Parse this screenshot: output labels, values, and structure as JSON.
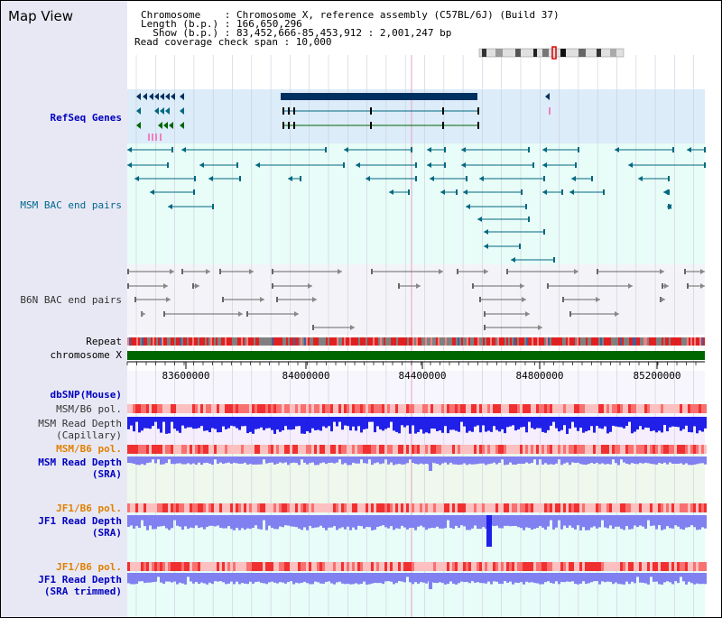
{
  "title": "Map View",
  "header": {
    "line1": "Chromosome    : Chromosome X, reference assembly (C57BL/6J) (Build 37)",
    "line2": "Length (b.p.) : 166,650,296",
    "line3": "  Show (b.p.) : 83,452,666-85,453,912 : 2,001,247 bp",
    "line4": "Read coverage check span : 10,000"
  },
  "tracks": {
    "refseq": "RefSeq Genes",
    "msm_bac": "MSM BAC end pairs",
    "b6n_bac": "B6N BAC end pairs",
    "repeat": "Repeat",
    "chromosome": "chromosome X",
    "dbsnp": "dbSNP(Mouse)",
    "msm_b6_pol_1": "MSM/B6 pol.",
    "msm_depth_cap": "MSM Read Depth\n(Capillary)",
    "msm_b6_pol_2": "MSM/B6 pol.",
    "msm_depth_sra": "MSM Read Depth\n(SRA)",
    "jf1_b6_pol_1": "JF1/B6 pol.",
    "jf1_depth_sra": "JF1 Read Depth\n(SRA)",
    "jf1_b6_pol_2": "JF1/B6 pol.",
    "jf1_depth_trim": "JF1 Read Depth\n(SRA trimmed)"
  },
  "axis": {
    "ticks": [
      "83600000",
      "84000000",
      "84400000",
      "84800000",
      "85200000"
    ]
  },
  "colors": {
    "refseq_bg": "#dcecf8",
    "msm_bac_bg": "#e8fcf8",
    "b6n_bac_bg": "#f4f4f8",
    "chrom_green": "#006600",
    "depth_blue": "#2020e8",
    "depth_light": "#8080f0",
    "gene_dark": "#003060",
    "gene_teal": "#006880",
    "gene_green": "#006600"
  }
}
